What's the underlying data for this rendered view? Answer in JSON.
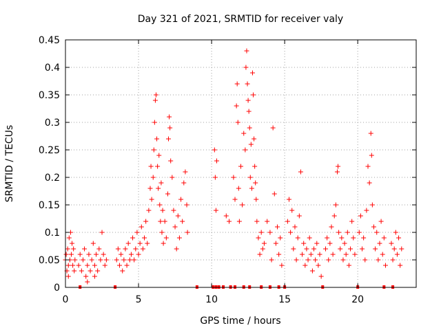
{
  "chart_data": {
    "type": "scatter",
    "title": "Day 321 of 2021, SRMTID for receiver valy",
    "xlabel": "GPS time / hours",
    "ylabel": "SRMTID / TECUs",
    "xlim": [
      0,
      24
    ],
    "ylim": [
      0,
      0.45
    ],
    "xticks": [
      0,
      5,
      10,
      15,
      20
    ],
    "xtick_labels": [
      "0",
      "5",
      "10",
      "15",
      "20"
    ],
    "yticks": [
      0,
      0.05,
      0.1,
      0.15,
      0.2,
      0.25,
      0.3,
      0.35,
      0.4,
      0.45
    ],
    "ytick_labels": [
      "0",
      "0.05",
      "0.1",
      "0.15",
      "0.2",
      "0.25",
      "0.3",
      "0.35",
      "0.4",
      "0.45"
    ],
    "grid": true,
    "marker": "+",
    "color": "#ff0000",
    "series": [
      {
        "name": "SRMTID",
        "points": [
          [
            0.0,
            0.05
          ],
          [
            0.05,
            0.06
          ],
          [
            0.1,
            0.03
          ],
          [
            0.15,
            0.07
          ],
          [
            0.2,
            0.04
          ],
          [
            0.25,
            0.09
          ],
          [
            0.3,
            0.05
          ],
          [
            0.35,
            0.1
          ],
          [
            0.4,
            0.06
          ],
          [
            0.45,
            0.08
          ],
          [
            0.5,
            0.04
          ],
          [
            0.55,
            0.07
          ],
          [
            0.6,
            0.03
          ],
          [
            0.65,
            0.05
          ],
          [
            0.2,
            0.02
          ],
          [
            0.9,
            0.04
          ],
          [
            1.0,
            0.06
          ],
          [
            1.1,
            0.03
          ],
          [
            1.2,
            0.05
          ],
          [
            1.3,
            0.07
          ],
          [
            1.4,
            0.02
          ],
          [
            1.5,
            0.04
          ],
          [
            1.6,
            0.06
          ],
          [
            1.7,
            0.03
          ],
          [
            1.8,
            0.05
          ],
          [
            1.9,
            0.08
          ],
          [
            2.0,
            0.04
          ],
          [
            2.1,
            0.06
          ],
          [
            2.2,
            0.03
          ],
          [
            2.3,
            0.07
          ],
          [
            2.4,
            0.05
          ],
          [
            2.5,
            0.1
          ],
          [
            2.6,
            0.06
          ],
          [
            2.7,
            0.04
          ],
          [
            2.8,
            0.05
          ],
          [
            1.5,
            0.01
          ],
          [
            2.0,
            0.02
          ],
          [
            3.5,
            0.05
          ],
          [
            3.6,
            0.07
          ],
          [
            3.7,
            0.04
          ],
          [
            3.8,
            0.06
          ],
          [
            3.9,
            0.03
          ],
          [
            4.0,
            0.05
          ],
          [
            4.1,
            0.07
          ],
          [
            4.2,
            0.04
          ],
          [
            4.3,
            0.08
          ],
          [
            4.4,
            0.05
          ],
          [
            4.5,
            0.06
          ],
          [
            4.6,
            0.09
          ],
          [
            4.7,
            0.05
          ],
          [
            4.8,
            0.07
          ],
          [
            4.9,
            0.1
          ],
          [
            5.0,
            0.06
          ],
          [
            5.1,
            0.08
          ],
          [
            5.2,
            0.11
          ],
          [
            5.3,
            0.07
          ],
          [
            5.4,
            0.09
          ],
          [
            5.5,
            0.12
          ],
          [
            5.6,
            0.08
          ],
          [
            5.7,
            0.14
          ],
          [
            5.8,
            0.18
          ],
          [
            5.85,
            0.22
          ],
          [
            5.9,
            0.16
          ],
          [
            6.0,
            0.2
          ],
          [
            6.05,
            0.25
          ],
          [
            6.1,
            0.3
          ],
          [
            6.15,
            0.34
          ],
          [
            6.2,
            0.35
          ],
          [
            6.25,
            0.27
          ],
          [
            6.3,
            0.22
          ],
          [
            6.35,
            0.18
          ],
          [
            6.4,
            0.24
          ],
          [
            6.45,
            0.15
          ],
          [
            6.5,
            0.12
          ],
          [
            6.55,
            0.19
          ],
          [
            6.6,
            0.1
          ],
          [
            6.65,
            0.14
          ],
          [
            6.7,
            0.08
          ],
          [
            6.8,
            0.12
          ],
          [
            6.9,
            0.09
          ],
          [
            7.0,
            0.17
          ],
          [
            7.05,
            0.27
          ],
          [
            7.1,
            0.31
          ],
          [
            7.15,
            0.29
          ],
          [
            7.2,
            0.23
          ],
          [
            7.3,
            0.2
          ],
          [
            7.4,
            0.14
          ],
          [
            7.5,
            0.11
          ],
          [
            7.6,
            0.07
          ],
          [
            7.7,
            0.13
          ],
          [
            7.8,
            0.09
          ],
          [
            7.9,
            0.16
          ],
          [
            8.0,
            0.12
          ],
          [
            8.1,
            0.19
          ],
          [
            8.2,
            0.21
          ],
          [
            8.3,
            0.15
          ],
          [
            8.35,
            0.1
          ],
          [
            10.2,
            0.25
          ],
          [
            10.25,
            0.2
          ],
          [
            10.3,
            0.14
          ],
          [
            10.35,
            0.23
          ],
          [
            11.0,
            0.13
          ],
          [
            11.2,
            0.12
          ],
          [
            11.5,
            0.2
          ],
          [
            11.6,
            0.16
          ],
          [
            11.7,
            0.33
          ],
          [
            11.75,
            0.37
          ],
          [
            11.8,
            0.3
          ],
          [
            11.85,
            0.18
          ],
          [
            11.9,
            0.12
          ],
          [
            12.0,
            0.22
          ],
          [
            12.1,
            0.15
          ],
          [
            12.2,
            0.28
          ],
          [
            12.3,
            0.25
          ],
          [
            12.35,
            0.4
          ],
          [
            12.4,
            0.43
          ],
          [
            12.45,
            0.37
          ],
          [
            12.5,
            0.34
          ],
          [
            12.55,
            0.32
          ],
          [
            12.6,
            0.29
          ],
          [
            12.65,
            0.2
          ],
          [
            12.7,
            0.26
          ],
          [
            12.75,
            0.18
          ],
          [
            12.8,
            0.39
          ],
          [
            12.85,
            0.35
          ],
          [
            12.9,
            0.27
          ],
          [
            12.95,
            0.22
          ],
          [
            13.0,
            0.19
          ],
          [
            13.05,
            0.16
          ],
          [
            13.1,
            0.12
          ],
          [
            13.2,
            0.09
          ],
          [
            13.3,
            0.06
          ],
          [
            13.4,
            0.1
          ],
          [
            13.5,
            0.07
          ],
          [
            13.6,
            0.08
          ],
          [
            13.8,
            0.12
          ],
          [
            14.0,
            0.1
          ],
          [
            14.1,
            0.05
          ],
          [
            14.2,
            0.29
          ],
          [
            14.3,
            0.17
          ],
          [
            14.4,
            0.08
          ],
          [
            14.5,
            0.11
          ],
          [
            14.6,
            0.06
          ],
          [
            14.7,
            0.09
          ],
          [
            14.8,
            0.04
          ],
          [
            15.2,
            0.12
          ],
          [
            15.3,
            0.16
          ],
          [
            15.4,
            0.1
          ],
          [
            15.5,
            0.14
          ],
          [
            15.6,
            0.07
          ],
          [
            15.7,
            0.11
          ],
          [
            15.8,
            0.05
          ],
          [
            15.9,
            0.09
          ],
          [
            16.0,
            0.13
          ],
          [
            16.1,
            0.21
          ],
          [
            16.2,
            0.06
          ],
          [
            16.3,
            0.08
          ],
          [
            16.4,
            0.04
          ],
          [
            16.5,
            0.07
          ],
          [
            16.6,
            0.05
          ],
          [
            16.7,
            0.09
          ],
          [
            16.8,
            0.06
          ],
          [
            16.9,
            0.03
          ],
          [
            17.0,
            0.07
          ],
          [
            17.1,
            0.05
          ],
          [
            17.2,
            0.08
          ],
          [
            17.3,
            0.04
          ],
          [
            17.4,
            0.06
          ],
          [
            17.5,
            0.02
          ],
          [
            17.8,
            0.07
          ],
          [
            17.9,
            0.09
          ],
          [
            18.0,
            0.05
          ],
          [
            18.1,
            0.08
          ],
          [
            18.2,
            0.11
          ],
          [
            18.3,
            0.06
          ],
          [
            18.4,
            0.13
          ],
          [
            18.5,
            0.15
          ],
          [
            18.6,
            0.21
          ],
          [
            18.65,
            0.22
          ],
          [
            18.7,
            0.1
          ],
          [
            18.8,
            0.07
          ],
          [
            18.9,
            0.09
          ],
          [
            19.0,
            0.05
          ],
          [
            19.1,
            0.08
          ],
          [
            19.2,
            0.06
          ],
          [
            19.3,
            0.1
          ],
          [
            19.4,
            0.04
          ],
          [
            19.5,
            0.07
          ],
          [
            19.6,
            0.12
          ],
          [
            19.7,
            0.09
          ],
          [
            19.8,
            0.06
          ],
          [
            20.1,
            0.1
          ],
          [
            20.2,
            0.13
          ],
          [
            20.3,
            0.07
          ],
          [
            20.4,
            0.09
          ],
          [
            20.5,
            0.05
          ],
          [
            20.6,
            0.14
          ],
          [
            20.7,
            0.22
          ],
          [
            20.8,
            0.19
          ],
          [
            20.9,
            0.28
          ],
          [
            20.95,
            0.24
          ],
          [
            21.0,
            0.15
          ],
          [
            21.1,
            0.11
          ],
          [
            21.2,
            0.07
          ],
          [
            21.3,
            0.1
          ],
          [
            21.4,
            0.05
          ],
          [
            21.5,
            0.08
          ],
          [
            21.6,
            0.12
          ],
          [
            21.7,
            0.06
          ],
          [
            21.8,
            0.09
          ],
          [
            21.9,
            0.04
          ],
          [
            22.3,
            0.08
          ],
          [
            22.4,
            0.05
          ],
          [
            22.5,
            0.07
          ],
          [
            22.6,
            0.1
          ],
          [
            22.7,
            0.06
          ],
          [
            22.8,
            0.09
          ],
          [
            22.9,
            0.04
          ],
          [
            23.0,
            0.07
          ]
        ]
      }
    ],
    "zero_markers": [
      1.0,
      3.4,
      9.0,
      10.1,
      10.3,
      10.5,
      10.8,
      11.3,
      11.6,
      12.2,
      12.6,
      13.4,
      14.0,
      14.6,
      15.0,
      17.6,
      20.0,
      21.8,
      22.4
    ]
  }
}
